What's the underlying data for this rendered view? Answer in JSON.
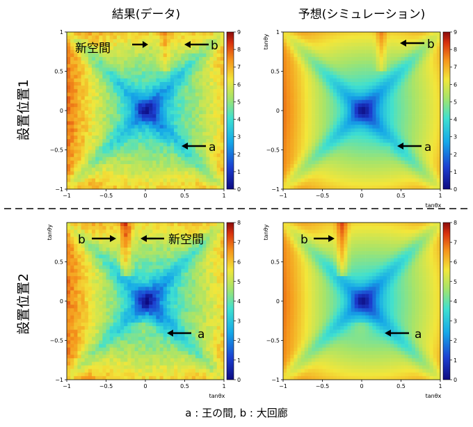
{
  "column_titles": [
    "結果(データ)",
    "予想(シミュレーション)"
  ],
  "row_titles": [
    "設置位置1",
    "設置位置2"
  ],
  "caption": "a : 王の間, b : 大回廊",
  "chart_data": [
    {
      "type": "heatmap",
      "panel": "row1-data",
      "x_ticks": [
        "−1",
        "−0.5",
        "0",
        "0.5",
        "1"
      ],
      "y_ticks": [
        "1",
        "0.5",
        "0",
        "−0.5",
        "−1"
      ],
      "xlim": [
        -1,
        1
      ],
      "ylim": [
        -1,
        1
      ],
      "colorbar": {
        "min": 0,
        "max": 9,
        "ticks": [
          "0",
          "1",
          "2",
          "3",
          "4",
          "5",
          "6",
          "7",
          "8",
          "9"
        ]
      },
      "annotations": [
        "新空間",
        "b",
        "a"
      ]
    },
    {
      "type": "heatmap",
      "panel": "row1-simulation",
      "x_ticks": [
        "−1",
        "−0.5",
        "0",
        "0.5",
        "1"
      ],
      "y_ticks": [
        "1",
        "0.5",
        "0",
        "−0.5",
        "−1"
      ],
      "xlim": [
        -1,
        1
      ],
      "ylim": [
        -1,
        1
      ],
      "xlabel": "tanθx",
      "ylabel": "tanθy",
      "colorbar": {
        "min": 0,
        "max": 9,
        "ticks": [
          "0",
          "1",
          "2",
          "3",
          "4",
          "5",
          "6",
          "7",
          "8",
          "9"
        ]
      },
      "annotations": [
        "b",
        "a"
      ]
    },
    {
      "type": "heatmap",
      "panel": "row2-data",
      "x_ticks": [
        "−1",
        "−0.5",
        "0",
        "0.5",
        "1"
      ],
      "y_ticks": [
        "0.5",
        "0",
        "−0.5",
        "−1"
      ],
      "xlim": [
        -1,
        1
      ],
      "ylim": [
        -1,
        1
      ],
      "xlabel": "tanθx",
      "ylabel": "tanθy",
      "colorbar": {
        "min": 0,
        "max": 8,
        "ticks": [
          "0",
          "1",
          "2",
          "3",
          "4",
          "5",
          "6",
          "7",
          "8"
        ]
      },
      "annotations": [
        "b",
        "新空間",
        "a"
      ]
    },
    {
      "type": "heatmap",
      "panel": "row2-simulation",
      "x_ticks": [
        "−1",
        "−0.5",
        "0",
        "0.5",
        "1"
      ],
      "y_ticks": [
        "0.5",
        "0",
        "−0.5",
        "−1"
      ],
      "xlim": [
        -1,
        1
      ],
      "ylim": [
        -1,
        1
      ],
      "xlabel": "tanθx",
      "ylabel": "tanθy",
      "colorbar": {
        "min": 0,
        "max": 8,
        "ticks": [
          "0",
          "1",
          "2",
          "3",
          "4",
          "5",
          "6",
          "7",
          "8"
        ]
      },
      "annotations": [
        "b",
        "a"
      ]
    }
  ]
}
